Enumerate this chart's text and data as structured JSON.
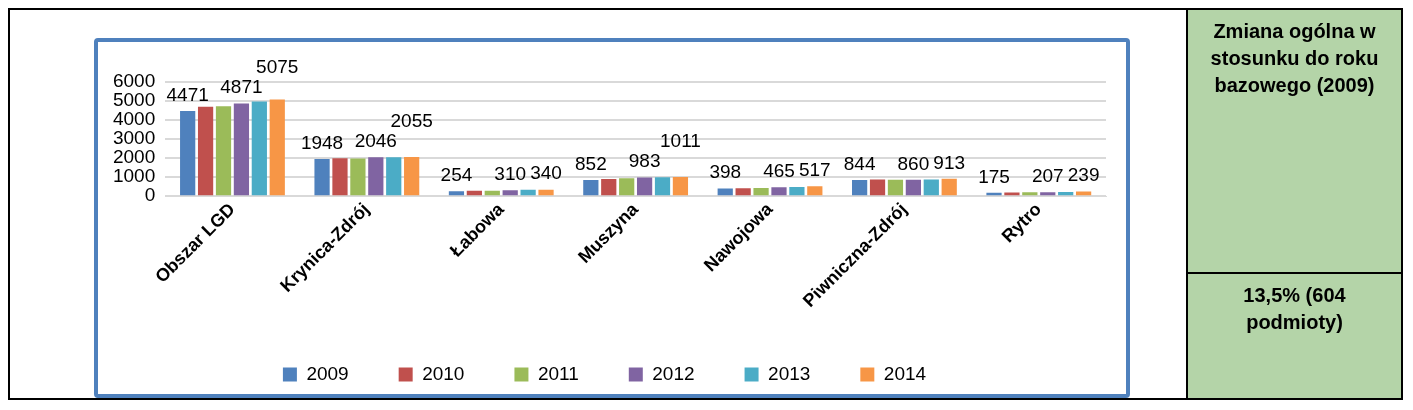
{
  "chart_data": {
    "type": "bar",
    "categories": [
      "Obszar LGD",
      "Krynica-Zdrój",
      "Łabowa",
      "Muszyna",
      "Nawojowa",
      "Piwniczna-Zdrój",
      "Rytro"
    ],
    "series": [
      {
        "name": "2009",
        "color": "#4f81bd",
        "values": [
          4471,
          1948,
          254,
          852,
          398,
          844,
          175
        ],
        "value_labels": [
          "4471",
          "1948",
          "254",
          "852",
          "398",
          "844",
          "175"
        ]
      },
      {
        "name": "2010",
        "color": "#c0504d",
        "values": [
          4700,
          1990,
          280,
          900,
          420,
          880,
          190
        ]
      },
      {
        "name": "2011",
        "color": "#9bbb59",
        "values": [
          4720,
          1980,
          290,
          940,
          430,
          860,
          200
        ]
      },
      {
        "name": "2012",
        "color": "#8064a2",
        "values": [
          4871,
          2046,
          310,
          983,
          465,
          860,
          207
        ],
        "value_labels": [
          "4871",
          "2046",
          "310",
          "983",
          "465",
          "860",
          "207"
        ]
      },
      {
        "name": "2013",
        "color": "#4bacc6",
        "values": [
          4970,
          2050,
          330,
          990,
          480,
          880,
          220
        ]
      },
      {
        "name": "2014",
        "color": "#f79646",
        "values": [
          5075,
          2055,
          340,
          1011,
          517,
          913,
          239
        ],
        "value_labels": [
          "5075",
          "2055",
          "340",
          "1011",
          "517",
          "913",
          "239"
        ]
      }
    ],
    "ylim": [
      0,
      6000
    ],
    "yticks": [
      0,
      1000,
      2000,
      3000,
      4000,
      5000,
      6000
    ],
    "grid": "y",
    "legend": "bottom",
    "annotations": [
      "Zmiana ogólna w stosunku do roku bazowego (2009)",
      "13,5% (604 podmioty)"
    ]
  }
}
